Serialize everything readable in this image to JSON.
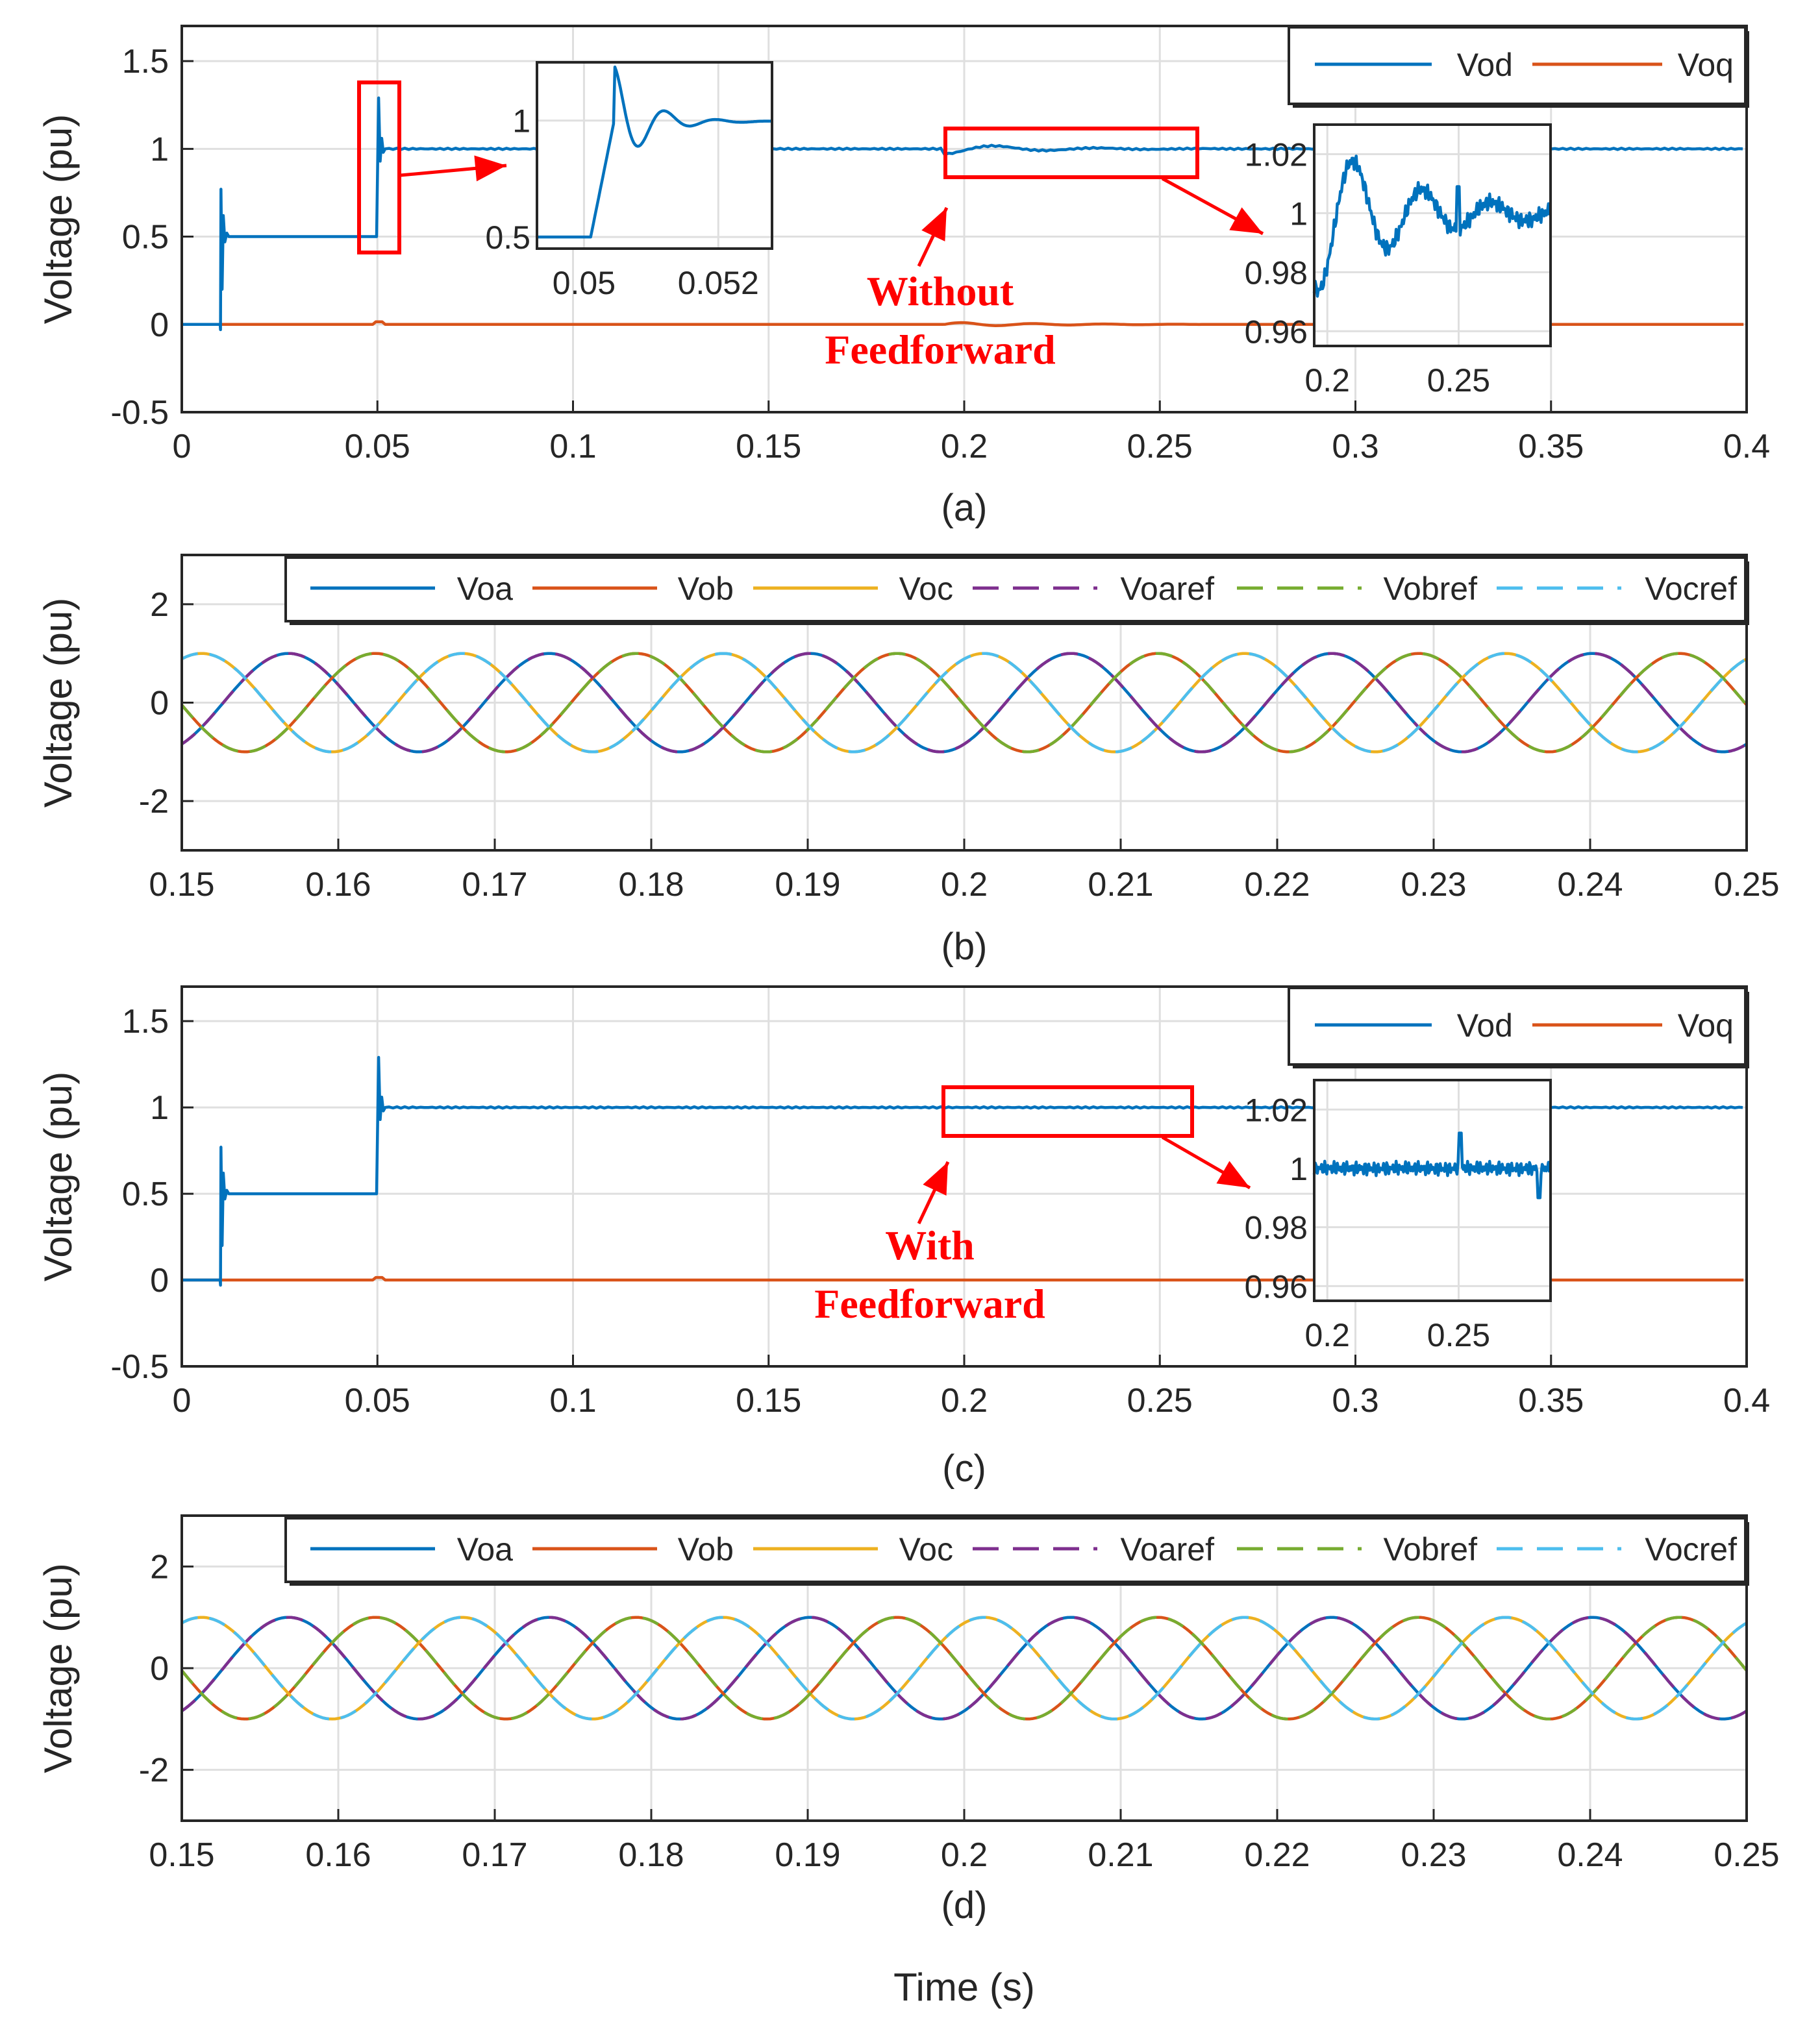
{
  "chart_data": [
    {
      "panel": "(a)",
      "type": "line",
      "caption": "(a)",
      "ylabel": "Voltage (pu)",
      "xlabel": "",
      "xlim": [
        0,
        0.4
      ],
      "ylim": [
        -0.5,
        1.7
      ],
      "xticks": [
        0,
        0.05,
        0.1,
        0.15,
        0.2,
        0.25,
        0.3,
        0.35,
        0.4
      ],
      "yticks": [
        -0.5,
        0,
        0.5,
        1,
        1.5
      ],
      "grid": true,
      "legend": {
        "placement": "top-right",
        "entries": [
          "Vod",
          "Voq"
        ]
      },
      "series": [
        {
          "name": "Vod",
          "color": "#0072bd",
          "description_points": [
            [
              0,
              0
            ],
            [
              0.01,
              0
            ],
            [
              0.0102,
              0.77
            ],
            [
              0.011,
              0.5
            ],
            [
              0.05,
              0.5
            ],
            [
              0.0505,
              1.29
            ],
            [
              0.051,
              1.0
            ],
            [
              0.4,
              1.0
            ]
          ]
        },
        {
          "name": "Voq",
          "color": "#d95319",
          "description_points": [
            [
              0,
              0
            ],
            [
              0.4,
              0
            ]
          ]
        }
      ],
      "annotations": [
        {
          "text": "Without",
          "color": "#ff0000"
        },
        {
          "text": "Feedforward",
          "color": "#ff0000"
        }
      ],
      "insets": [
        {
          "xlim": [
            0.0493,
            0.0528
          ],
          "ylim": [
            0.45,
            1.25
          ],
          "xticks": [
            0.05,
            0.052
          ],
          "yticks": [
            0.5,
            1
          ]
        },
        {
          "xlim": [
            0.195,
            0.285
          ],
          "ylim": [
            0.955,
            1.03
          ],
          "xticks": [
            0.2,
            0.25
          ],
          "yticks": [
            0.96,
            0.98,
            1,
            1.02
          ]
        }
      ]
    },
    {
      "panel": "(b)",
      "type": "line",
      "caption": "(b)",
      "ylabel": "Voltage (pu)",
      "xlim": [
        0.15,
        0.25
      ],
      "ylim": [
        -3,
        3
      ],
      "xticks": [
        0.15,
        0.16,
        0.17,
        0.18,
        0.19,
        0.2,
        0.21,
        0.22,
        0.23,
        0.24,
        0.25
      ],
      "yticks": [
        -2,
        0,
        2
      ],
      "grid": true,
      "legend": {
        "placement": "top",
        "entries": [
          "Voa",
          "Vob",
          "Voc",
          "Voaref",
          "Vobref",
          "Vocref"
        ]
      },
      "signal": {
        "amplitude": 1,
        "frequency_hz": 60,
        "phase_shift_deg": [
          0,
          -120,
          120
        ]
      },
      "series": [
        {
          "name": "Voa",
          "color": "#0072bd",
          "style": "solid"
        },
        {
          "name": "Vob",
          "color": "#d95319",
          "style": "solid"
        },
        {
          "name": "Voc",
          "color": "#edb120",
          "style": "solid"
        },
        {
          "name": "Voaref",
          "color": "#7e2f8e",
          "style": "dashed"
        },
        {
          "name": "Vobref",
          "color": "#77ac30",
          "style": "dashed"
        },
        {
          "name": "Vocref",
          "color": "#4dbeee",
          "style": "dashed"
        }
      ]
    },
    {
      "panel": "(c)",
      "type": "line",
      "caption": "(c)",
      "ylabel": "Voltage (pu)",
      "xlim": [
        0,
        0.4
      ],
      "ylim": [
        -0.5,
        1.7
      ],
      "xticks": [
        0,
        0.05,
        0.1,
        0.15,
        0.2,
        0.25,
        0.3,
        0.35,
        0.4
      ],
      "yticks": [
        -0.5,
        0,
        0.5,
        1,
        1.5
      ],
      "grid": true,
      "legend": {
        "placement": "top-right",
        "entries": [
          "Vod",
          "Voq"
        ]
      },
      "series": [
        {
          "name": "Vod",
          "color": "#0072bd",
          "description_points": [
            [
              0,
              0
            ],
            [
              0.01,
              0
            ],
            [
              0.0102,
              0.77
            ],
            [
              0.011,
              0.5
            ],
            [
              0.05,
              0.5
            ],
            [
              0.0505,
              1.29
            ],
            [
              0.051,
              1.0
            ],
            [
              0.4,
              1.0
            ]
          ]
        },
        {
          "name": "Voq",
          "color": "#d95319",
          "description_points": [
            [
              0,
              0
            ],
            [
              0.4,
              0
            ]
          ]
        }
      ],
      "annotations": [
        {
          "text": "With",
          "color": "#ff0000"
        },
        {
          "text": "Feedforward",
          "color": "#ff0000"
        }
      ],
      "insets": [
        {
          "xlim": [
            0.195,
            0.285
          ],
          "ylim": [
            0.955,
            1.03
          ],
          "xticks": [
            0.2,
            0.25
          ],
          "yticks": [
            0.96,
            0.98,
            1,
            1.02
          ]
        }
      ]
    },
    {
      "panel": "(d)",
      "type": "line",
      "caption": "(d)",
      "ylabel": "Voltage (pu)",
      "xlabel": "Time (s)",
      "xlim": [
        0.15,
        0.25
      ],
      "ylim": [
        -3,
        3
      ],
      "xticks": [
        0.15,
        0.16,
        0.17,
        0.18,
        0.19,
        0.2,
        0.21,
        0.22,
        0.23,
        0.24,
        0.25
      ],
      "yticks": [
        -2,
        0,
        2
      ],
      "grid": true,
      "legend": {
        "placement": "top",
        "entries": [
          "Voa",
          "Vob",
          "Voc",
          "Voaref",
          "Vobref",
          "Vocref"
        ]
      },
      "signal": {
        "amplitude": 1,
        "frequency_hz": 60,
        "phase_shift_deg": [
          0,
          -120,
          120
        ]
      },
      "series": [
        {
          "name": "Voa",
          "color": "#0072bd",
          "style": "solid"
        },
        {
          "name": "Vob",
          "color": "#d95319",
          "style": "solid"
        },
        {
          "name": "Voc",
          "color": "#edb120",
          "style": "solid"
        },
        {
          "name": "Voaref",
          "color": "#7e2f8e",
          "style": "dashed"
        },
        {
          "name": "Vobref",
          "color": "#77ac30",
          "style": "dashed"
        },
        {
          "name": "Vocref",
          "color": "#4dbeee",
          "style": "dashed"
        }
      ]
    }
  ]
}
